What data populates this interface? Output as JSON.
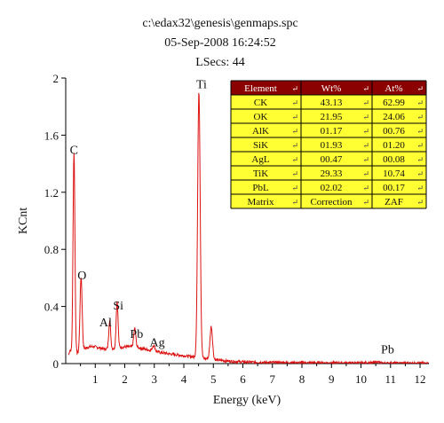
{
  "header": {
    "file_path": "c:\\edax32\\genesis\\genmaps.spc",
    "datetime": "05-Sep-2008 16:24:52",
    "lsecs": "LSecs: 44"
  },
  "chart_data": {
    "type": "line",
    "title": "c:\\edax32\\genesis\\genmaps.spc",
    "xlabel": "Energy (keV)",
    "ylabel": "KCnt",
    "xlim": [
      0,
      12.3
    ],
    "ylim": [
      0,
      2
    ],
    "x_ticks": [
      "1",
      "2",
      "3",
      "4",
      "5",
      "6",
      "7",
      "8",
      "9",
      "10",
      "11",
      "12"
    ],
    "y_ticks": [
      "0",
      "0.4",
      "0.8",
      "1.2",
      "1.6",
      "2"
    ],
    "grid": false,
    "legend": "none",
    "line_color": "#dd1111",
    "baseline": 0.03,
    "background_peaks": [
      {
        "e": 0.15,
        "h": 0.05,
        "w": 0.05
      },
      {
        "e": 0.8,
        "h": 0.07,
        "w": 0.5
      },
      {
        "e": 2.0,
        "h": 0.08,
        "w": 1.0
      },
      {
        "e": 3.5,
        "h": 0.045,
        "w": 1.5
      }
    ],
    "peaks": [
      {
        "label": "C",
        "energy": 0.28,
        "value": 1.43,
        "width": 0.045
      },
      {
        "label": "O",
        "energy": 0.52,
        "value": 0.52,
        "width": 0.05
      },
      {
        "label": "Al",
        "energy": 1.49,
        "value": 0.2,
        "width": 0.045
      },
      {
        "label": "Si",
        "energy": 1.74,
        "value": 0.33,
        "width": 0.045
      },
      {
        "label": "Pb",
        "energy": 2.34,
        "value": 0.13,
        "width": 0.05
      },
      {
        "label": "Ag",
        "energy": 2.98,
        "value": 0.04,
        "width": 0.06
      },
      {
        "label": "Ti",
        "energy": 4.51,
        "value": 1.88,
        "width": 0.06
      },
      {
        "label": "",
        "energy": 4.93,
        "value": 0.23,
        "width": 0.06
      },
      {
        "label": "Pb",
        "energy": 10.55,
        "value": 0.01,
        "width": 0.08
      }
    ],
    "peak_labels": [
      {
        "text": "C",
        "energy": 0.28,
        "value": 1.47
      },
      {
        "text": "O",
        "energy": 0.55,
        "value": 0.59
      },
      {
        "text": "Al",
        "energy": 1.35,
        "value": 0.26
      },
      {
        "text": "Si",
        "energy": 1.78,
        "value": 0.38
      },
      {
        "text": "Pb",
        "energy": 2.4,
        "value": 0.18
      },
      {
        "text": "Ag",
        "energy": 3.1,
        "value": 0.12
      },
      {
        "text": "Ti",
        "energy": 4.6,
        "value": 1.93
      },
      {
        "text": "Pb",
        "energy": 10.9,
        "value": 0.07
      }
    ]
  },
  "table": {
    "headers": [
      "Element",
      "Wt%",
      "At%"
    ],
    "rows": [
      [
        "CK",
        "43.13",
        "62.99"
      ],
      [
        "OK",
        "21.95",
        "24.06"
      ],
      [
        "AlK",
        "01.17",
        "00.76"
      ],
      [
        "SiK",
        "01.93",
        "01.20"
      ],
      [
        "AgL",
        "00.47",
        "00.08"
      ],
      [
        "TiK",
        "29.33",
        "10.74"
      ],
      [
        "PbL",
        "02.02",
        "00.17"
      ],
      [
        "Matrix",
        "Correction",
        "ZAF"
      ]
    ],
    "return_glyph": "↵",
    "header_color": "#8b0000",
    "cell_color": "#ffff33"
  }
}
